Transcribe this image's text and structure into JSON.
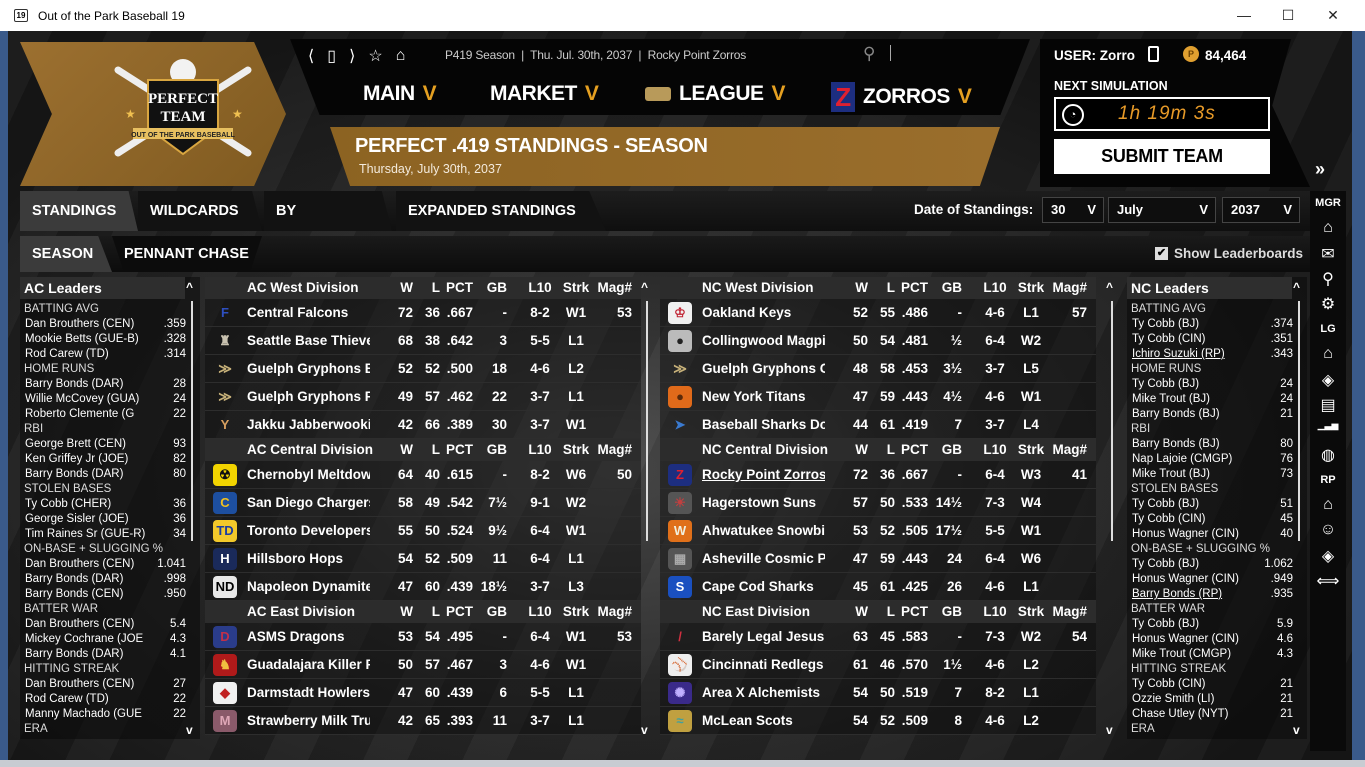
{
  "window": {
    "title": "Out of the Park Baseball 19",
    "icon_text": "19",
    "minimize": "—",
    "maximize": "☐",
    "close": "✕"
  },
  "logo": {
    "line1": "PERFECT",
    "line2": "TEAM",
    "ribbon": "OUT OF THE PARK BASEBALL"
  },
  "breadcrumb": {
    "text": "P419 Season  |  Thu. Jul. 30th, 2037  |  Rocky Point Zorros",
    "icons": [
      "back-icon",
      "page-icon",
      "forward-icon",
      "star-icon",
      "home-icon"
    ]
  },
  "nav": [
    {
      "label": "MAIN"
    },
    {
      "label": "MARKET"
    },
    {
      "label": "LEAGUE"
    },
    {
      "label": "ZORROS"
    }
  ],
  "nav_chevron": "V",
  "header": {
    "title": "PERFECT .419 STANDINGS - SEASON",
    "subtitle": "Thursday, July 30th, 2037"
  },
  "user": {
    "label": "USER: Zorro",
    "coins": "84,464",
    "next_sim_label": "NEXT SIMULATION",
    "timer": "1h 19m 3s",
    "submit": "SUBMIT TEAM",
    "expand": "»"
  },
  "tabs": [
    {
      "label": "STANDINGS",
      "active": true
    },
    {
      "label": "WILDCARDS"
    },
    {
      "label": "BY SUBLEAGUE"
    },
    {
      "label": "EXPANDED STANDINGS"
    }
  ],
  "subtabs": [
    {
      "label": "SEASON",
      "active": true
    },
    {
      "label": "PENNANT CHASE"
    }
  ],
  "date_filter": {
    "label": "Date of Standings:",
    "day": "30",
    "month": "July",
    "year": "2037",
    "chevron": "V"
  },
  "show_leaderboards": {
    "label": "Show Leaderboards",
    "checked": true
  },
  "sidebar": {
    "groups": [
      {
        "label": "MGR",
        "icons": [
          "home-icon",
          "mail-icon",
          "search-icon",
          "gear-icon"
        ]
      },
      {
        "label": "LG",
        "icons": [
          "home-icon",
          "diamond-icon",
          "card-icon",
          "stats-bars-icon",
          "baseball-icon"
        ]
      },
      {
        "label": "RP",
        "icons": [
          "home-icon",
          "player-icon",
          "diamond-icon",
          "trade-icon"
        ]
      }
    ]
  },
  "columns": {
    "w": "W",
    "l": "L",
    "pct": "PCT",
    "gb": "GB",
    "l10": "L10",
    "strk": "Strk",
    "mag": "Mag#"
  },
  "leaders": [
    {
      "title": "AC Leaders",
      "categories": [
        {
          "title": "BATTING AVG",
          "entries": [
            [
              "Dan Brouthers (CEN)",
              ".359"
            ],
            [
              "Mookie Betts (GUE-B)",
              ".328"
            ],
            [
              "Rod Carew (TD)",
              ".314"
            ]
          ]
        },
        {
          "title": "HOME RUNS",
          "entries": [
            [
              "Barry Bonds (DAR)",
              "28"
            ],
            [
              "Willie McCovey (GUA)",
              "24"
            ],
            [
              "Roberto Clemente (G",
              "22"
            ]
          ]
        },
        {
          "title": "RBI",
          "entries": [
            [
              "George Brett (CEN)",
              "93"
            ],
            [
              "Ken Griffey Jr (JOE)",
              "82"
            ],
            [
              "Barry Bonds (DAR)",
              "80"
            ]
          ]
        },
        {
          "title": "STOLEN BASES",
          "entries": [
            [
              "Ty Cobb (CHER)",
              "36"
            ],
            [
              "George Sisler (JOE)",
              "36"
            ],
            [
              "Tim Raines Sr (GUE-R)",
              "34"
            ]
          ]
        },
        {
          "title": "ON-BASE + SLUGGING %",
          "entries": [
            [
              "Dan Brouthers (CEN)",
              "1.041"
            ],
            [
              "Barry Bonds (DAR)",
              ".998"
            ],
            [
              "Barry Bonds (CEN)",
              ".950"
            ]
          ]
        },
        {
          "title": "BATTER WAR",
          "entries": [
            [
              "Dan Brouthers (CEN)",
              "5.4"
            ],
            [
              "Mickey Cochrane (JOE",
              "4.3"
            ],
            [
              "Barry Bonds (DAR)",
              "4.1"
            ]
          ]
        },
        {
          "title": "HITTING STREAK",
          "entries": [
            [
              "Dan Brouthers (CEN)",
              "27"
            ],
            [
              "Rod Carew (TD)",
              "22"
            ],
            [
              "Manny Machado (GUE",
              "22"
            ]
          ]
        },
        {
          "title": "ERA",
          "entries": []
        }
      ]
    },
    {
      "title": "NC Leaders",
      "categories": [
        {
          "title": "BATTING AVG",
          "entries": [
            [
              "Ty Cobb (BJ)",
              ".374"
            ],
            [
              "Ty Cobb (CIN)",
              ".351"
            ],
            [
              "Ichiro Suzuki (RP)",
              ".343",
              true
            ]
          ]
        },
        {
          "title": "HOME RUNS",
          "entries": [
            [
              "Ty Cobb (BJ)",
              "24"
            ],
            [
              "Mike Trout (BJ)",
              "24"
            ],
            [
              "Barry Bonds (BJ)",
              "21"
            ]
          ]
        },
        {
          "title": "RBI",
          "entries": [
            [
              "Barry Bonds (BJ)",
              "80"
            ],
            [
              "Nap Lajoie (CMGP)",
              "76"
            ],
            [
              "Mike Trout (BJ)",
              "73"
            ]
          ]
        },
        {
          "title": "STOLEN BASES",
          "entries": [
            [
              "Ty Cobb (BJ)",
              "51"
            ],
            [
              "Ty Cobb (CIN)",
              "45"
            ],
            [
              "Honus Wagner (CIN)",
              "40"
            ]
          ]
        },
        {
          "title": "ON-BASE + SLUGGING %",
          "entries": [
            [
              "Ty Cobb (BJ)",
              "1.062"
            ],
            [
              "Honus Wagner (CIN)",
              ".949"
            ],
            [
              "Barry Bonds (RP)",
              ".935",
              true
            ]
          ]
        },
        {
          "title": "BATTER WAR",
          "entries": [
            [
              "Ty Cobb (BJ)",
              "5.9"
            ],
            [
              "Honus Wagner (CIN)",
              "4.6"
            ],
            [
              "Mike Trout (CMGP)",
              "4.3"
            ]
          ]
        },
        {
          "title": "HITTING STREAK",
          "entries": [
            [
              "Ty Cobb (CIN)",
              "21"
            ],
            [
              "Ozzie Smith (LI)",
              "21"
            ],
            [
              "Chase Utley (NYT)",
              "21"
            ]
          ]
        },
        {
          "title": "ERA",
          "entries": []
        }
      ]
    }
  ],
  "standings": [
    [
      {
        "division": "AC West Division",
        "teams": [
          {
            "logo": "F",
            "fg": "#2e4fc0",
            "bg": "transparent",
            "name": "Central Falcons",
            "w": "72",
            "l": "36",
            "pct": ".667",
            "gb": "-",
            "l10": "8-2",
            "strk": "W1",
            "mag": "53"
          },
          {
            "logo": "♜",
            "fg": "#c9c2b0",
            "bg": "transparent",
            "name": "Seattle Base Thieves",
            "w": "68",
            "l": "38",
            "pct": ".642",
            "gb": "3",
            "l10": "5-5",
            "strk": "L1",
            "mag": ""
          },
          {
            "logo": "≫",
            "fg": "#c8b27a",
            "bg": "transparent",
            "name": "Guelph Gryphons Blue",
            "w": "52",
            "l": "52",
            "pct": ".500",
            "gb": "18",
            "l10": "4-6",
            "strk": "L2",
            "mag": ""
          },
          {
            "logo": "≫",
            "fg": "#c8b27a",
            "bg": "transparent",
            "name": "Guelph Gryphons Red",
            "w": "49",
            "l": "57",
            "pct": ".462",
            "gb": "22",
            "l10": "3-7",
            "strk": "L1",
            "mag": ""
          },
          {
            "logo": "Y",
            "fg": "#d8a060",
            "bg": "transparent",
            "name": "Jakku Jabberwookies",
            "w": "42",
            "l": "66",
            "pct": ".389",
            "gb": "30",
            "l10": "3-7",
            "strk": "W1",
            "mag": ""
          }
        ]
      },
      {
        "division": "AC Central Division",
        "teams": [
          {
            "logo": "☢",
            "fg": "#111",
            "bg": "#f2d400",
            "name": "Chernobyl Meltdown",
            "w": "64",
            "l": "40",
            "pct": ".615",
            "gb": "-",
            "l10": "8-2",
            "strk": "W6",
            "mag": "50"
          },
          {
            "logo": "C",
            "fg": "#f0c020",
            "bg": "#1d4fa0",
            "name": "San Diego Chargers",
            "w": "58",
            "l": "49",
            "pct": ".542",
            "gb": "7½",
            "l10": "9-1",
            "strk": "W2",
            "mag": ""
          },
          {
            "logo": "TD",
            "fg": "#1b3ca0",
            "bg": "#f2c82a",
            "name": "Toronto Developers",
            "w": "55",
            "l": "50",
            "pct": ".524",
            "gb": "9½",
            "l10": "6-4",
            "strk": "W1",
            "mag": ""
          },
          {
            "logo": "H",
            "fg": "#fff",
            "bg": "#1a2a5a",
            "name": "Hillsboro Hops",
            "w": "54",
            "l": "52",
            "pct": ".509",
            "gb": "11",
            "l10": "6-4",
            "strk": "L1",
            "mag": ""
          },
          {
            "logo": "ND",
            "fg": "#000",
            "bg": "#e8e8e8",
            "name": "Napoleon Dynamite",
            "w": "47",
            "l": "60",
            "pct": ".439",
            "gb": "18½",
            "l10": "3-7",
            "strk": "L3",
            "mag": ""
          }
        ]
      },
      {
        "division": "AC East Division",
        "teams": [
          {
            "logo": "D",
            "fg": "#c0304a",
            "bg": "#2a3c8a",
            "name": "ASMS Dragons",
            "w": "53",
            "l": "54",
            "pct": ".495",
            "gb": "-",
            "l10": "6-4",
            "strk": "W1",
            "mag": "53"
          },
          {
            "logo": "♞",
            "fg": "#f0c040",
            "bg": "#b01a1a",
            "name": "Guadalajara Killer Rabbits",
            "w": "50",
            "l": "57",
            "pct": ".467",
            "gb": "3",
            "l10": "4-6",
            "strk": "W1",
            "mag": ""
          },
          {
            "logo": "◆",
            "fg": "#c02020",
            "bg": "#f0f0f0",
            "name": "Darmstadt Howlers",
            "w": "47",
            "l": "60",
            "pct": ".439",
            "gb": "6",
            "l10": "5-5",
            "strk": "L1",
            "mag": ""
          },
          {
            "logo": "M",
            "fg": "#e0a8b8",
            "bg": "#8a5a6a",
            "name": "Strawberry Milk Trucks",
            "w": "42",
            "l": "65",
            "pct": ".393",
            "gb": "11",
            "l10": "3-7",
            "strk": "L1",
            "mag": ""
          }
        ]
      }
    ],
    [
      {
        "division": "NC West Division",
        "teams": [
          {
            "logo": "♔",
            "fg": "#c02030",
            "bg": "#f0f0f0",
            "name": "Oakland Keys",
            "w": "52",
            "l": "55",
            "pct": ".486",
            "gb": "-",
            "l10": "4-6",
            "strk": "L1",
            "mag": "57"
          },
          {
            "logo": "●",
            "fg": "#222",
            "bg": "#bbb",
            "name": "Collingwood Magpies",
            "w": "50",
            "l": "54",
            "pct": ".481",
            "gb": "½",
            "l10": "6-4",
            "strk": "W2",
            "mag": ""
          },
          {
            "logo": "≫",
            "fg": "#c8b27a",
            "bg": "transparent",
            "name": "Guelph Gryphons Gold",
            "w": "48",
            "l": "58",
            "pct": ".453",
            "gb": "3½",
            "l10": "3-7",
            "strk": "L5",
            "mag": ""
          },
          {
            "logo": "●",
            "fg": "#5a2a0a",
            "bg": "#e06a1a",
            "name": "New York Titans",
            "w": "47",
            "l": "59",
            "pct": ".443",
            "gb": "4½",
            "l10": "4-6",
            "strk": "W1",
            "mag": ""
          },
          {
            "logo": "➤",
            "fg": "#3a7ad0",
            "bg": "transparent",
            "name": "Baseball Sharks Doo",
            "w": "44",
            "l": "61",
            "pct": ".419",
            "gb": "7",
            "l10": "3-7",
            "strk": "L4",
            "mag": ""
          }
        ]
      },
      {
        "division": "NC Central Division",
        "teams": [
          {
            "logo": "Z",
            "fg": "#e02030",
            "bg": "#1d2e80",
            "name": "Rocky Point Zorros",
            "w": "72",
            "l": "36",
            "pct": ".667",
            "gb": "-",
            "l10": "6-4",
            "strk": "W3",
            "mag": "41",
            "user": true
          },
          {
            "logo": "☀",
            "fg": "#c04040",
            "bg": "#555",
            "name": "Hagerstown Suns",
            "w": "57",
            "l": "50",
            "pct": ".533",
            "gb": "14½",
            "l10": "7-3",
            "strk": "W4",
            "mag": ""
          },
          {
            "logo": "W",
            "fg": "#f0f0e0",
            "bg": "#e0701a",
            "name": "Ahwatukee Snowbirds",
            "w": "53",
            "l": "52",
            "pct": ".505",
            "gb": "17½",
            "l10": "5-5",
            "strk": "W1",
            "mag": ""
          },
          {
            "logo": "▦",
            "fg": "#aaa",
            "bg": "#555",
            "name": "Asheville Cosmic Possums",
            "w": "47",
            "l": "59",
            "pct": ".443",
            "gb": "24",
            "l10": "6-4",
            "strk": "W6",
            "mag": ""
          },
          {
            "logo": "S",
            "fg": "#fff",
            "bg": "#1a50c0",
            "name": "Cape Cod Sharks",
            "w": "45",
            "l": "61",
            "pct": ".425",
            "gb": "26",
            "l10": "4-6",
            "strk": "L1",
            "mag": ""
          }
        ]
      },
      {
        "division": "NC East Division",
        "teams": [
          {
            "logo": "/",
            "fg": "#d03040",
            "bg": "transparent",
            "name": "Barely Legal Jesus",
            "w": "63",
            "l": "45",
            "pct": ".583",
            "gb": "-",
            "l10": "7-3",
            "strk": "W2",
            "mag": "54"
          },
          {
            "logo": "⚾",
            "fg": "#c02020",
            "bg": "#eee",
            "name": "Cincinnati Redlegs",
            "w": "61",
            "l": "46",
            "pct": ".570",
            "gb": "1½",
            "l10": "4-6",
            "strk": "L2",
            "mag": ""
          },
          {
            "logo": "✺",
            "fg": "#c0b0ff",
            "bg": "#3a2a8a",
            "name": "Area X Alchemists",
            "w": "54",
            "l": "50",
            "pct": ".519",
            "gb": "7",
            "l10": "8-2",
            "strk": "L1",
            "mag": ""
          },
          {
            "logo": "≈",
            "fg": "#40a0a0",
            "bg": "#c0a040",
            "name": "McLean Scots",
            "w": "54",
            "l": "52",
            "pct": ".509",
            "gb": "8",
            "l10": "4-6",
            "strk": "L2",
            "mag": ""
          }
        ]
      }
    ]
  ],
  "colors": {
    "accent_gold": "#93682a",
    "chevron": "#e5a021",
    "timer": "#e79a28"
  }
}
